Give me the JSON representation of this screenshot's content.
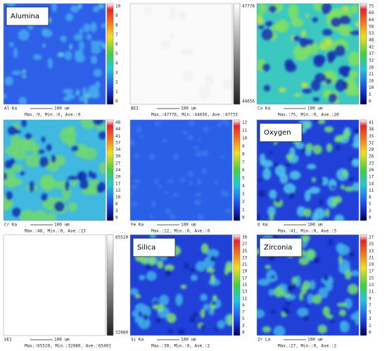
{
  "panels": [
    {
      "element": "Al Ka",
      "label": "Alumina",
      "colormap": "rainbow",
      "scale_bar": "100 um",
      "stats": "Max.:9, Min.:0, Ave.:0",
      "scale": [
        "10",
        "9",
        "8",
        "7",
        "6",
        "5",
        "4",
        "3",
        "2",
        "1",
        "0"
      ]
    },
    {
      "element": "BEI",
      "colormap": "gray",
      "scale_bar": "100 um",
      "stats": "Max.:47776, Min.:44656, Ave.:47733",
      "scale": [
        "47776",
        "44656"
      ]
    },
    {
      "element": "Co Ka",
      "colormap": "rainbow",
      "scale_bar": "100 um",
      "stats": "Max.:75, Min.:0, Ave.:20",
      "scale": [
        "75",
        "69",
        "64",
        "58",
        "53",
        "48",
        "42",
        "37",
        "32",
        "26",
        "21",
        "16",
        "10",
        "5",
        "0"
      ]
    },
    {
      "element": "Cr Ka",
      "colormap": "rainbow",
      "scale_bar": "100 um",
      "stats": "Max.:48, Min.:0, Ave.:13",
      "scale": [
        "48",
        "44",
        "41",
        "37",
        "34",
        "30",
        "27",
        "24",
        "20",
        "17",
        "13",
        "10",
        "6",
        "3",
        "0"
      ]
    },
    {
      "element": "Fe Ka",
      "colormap": "rainbow",
      "scale_bar": "100 um",
      "stats": "Max.:12, Min.:0, Ave.:0",
      "scale": [
        "12",
        "11",
        "10",
        "9",
        "8",
        "7",
        "6",
        "5",
        "4",
        "3",
        "2",
        "1",
        "0"
      ]
    },
    {
      "element": "O Ka",
      "label": "Oxygen",
      "colormap": "rainbow",
      "scale_bar": "100 um",
      "stats": "Max.:41, Min.:0, Ave.:5",
      "scale": [
        "41",
        "38",
        "35",
        "32",
        "29",
        "26",
        "23",
        "20",
        "17",
        "14",
        "11",
        "8",
        "5",
        "2",
        "0"
      ]
    },
    {
      "element": "SEI",
      "colormap": "gray",
      "scale_bar": "100 um",
      "stats": "Max.:65520, Min.:32080, Ave.:65491",
      "scale": [
        "65520",
        "32080"
      ]
    },
    {
      "element": "Si Ka",
      "label": "Silica",
      "colormap": "rainbow",
      "scale_bar": "100 um",
      "stats": "Max.:30, Min.:0, Ave.:2",
      "scale": [
        "30",
        "27",
        "25",
        "23",
        "21",
        "19",
        "17",
        "15",
        "13",
        "11",
        "9",
        "7",
        "5",
        "3",
        "0"
      ]
    },
    {
      "element": "Zr La",
      "label": "Zirconia",
      "colormap": "rainbow",
      "scale_bar": "100 um",
      "stats": "Max.:27, Min.:0, Ave.:2",
      "scale": [
        "27",
        "25",
        "23",
        "21",
        "19",
        "17",
        "15",
        "13",
        "11",
        "9",
        "7",
        "5",
        "3",
        "1",
        "0"
      ]
    }
  ]
}
